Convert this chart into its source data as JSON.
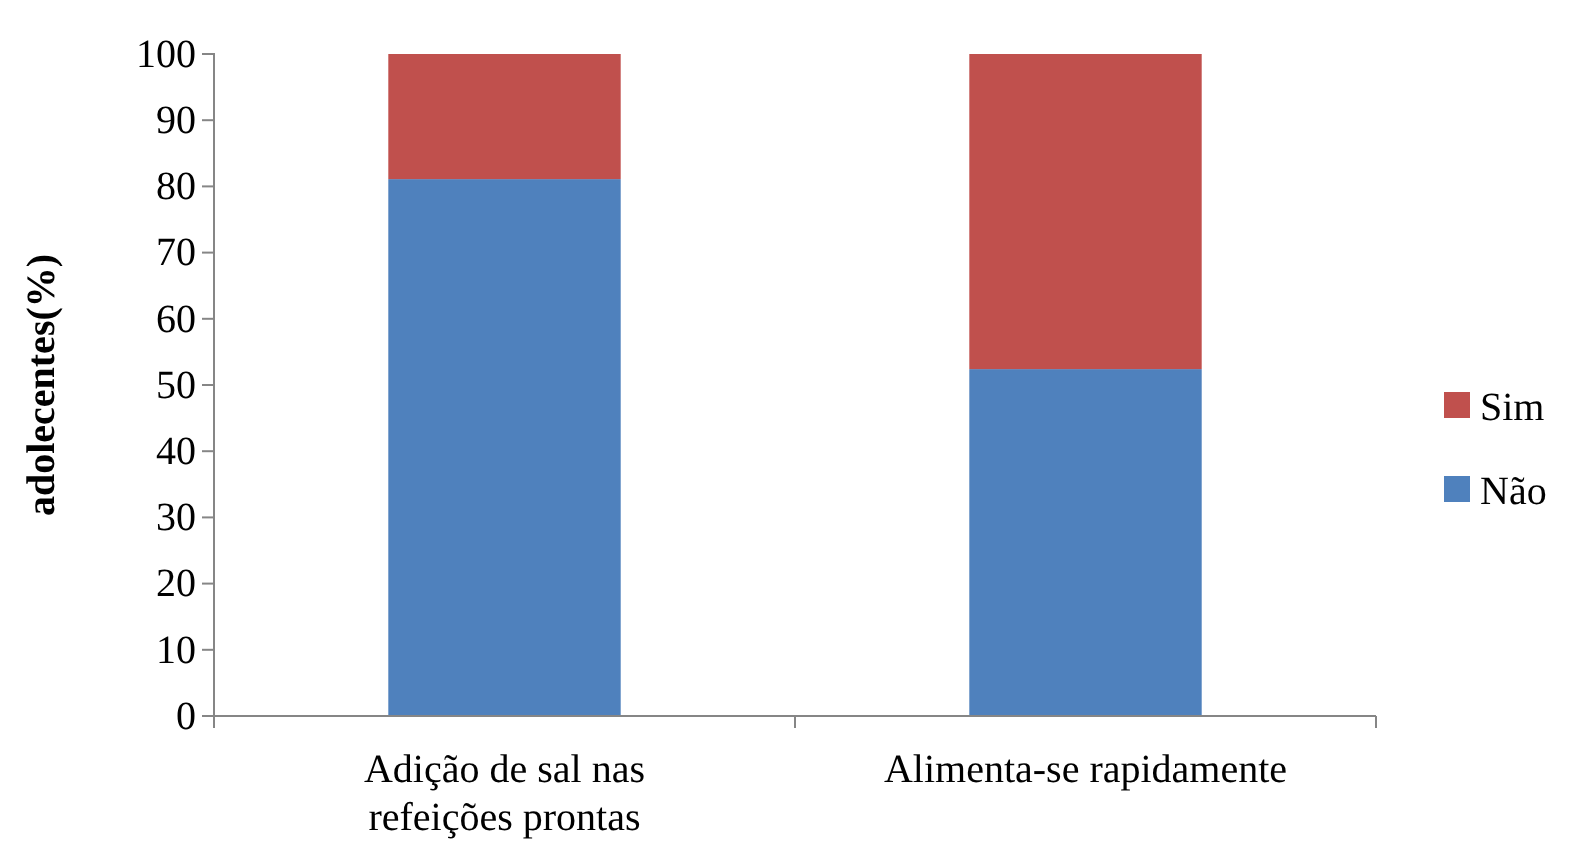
{
  "chart_data": {
    "type": "bar",
    "stacked": true,
    "ylabel": "adolecentes(%)",
    "categories": [
      "Adição de sal nas refeições prontas",
      "Alimenta-se rapidamente"
    ],
    "series": [
      {
        "name": "Não",
        "color": "#4f81bd",
        "values": [
          81.1,
          52.4
        ]
      },
      {
        "name": "Sim",
        "color": "#c0504d",
        "values": [
          18.9,
          47.6
        ]
      }
    ],
    "ylim": [
      0,
      100
    ],
    "yticks": [
      0,
      10,
      20,
      30,
      40,
      50,
      60,
      70,
      80,
      90,
      100
    ],
    "grid": false,
    "legend": "right"
  }
}
